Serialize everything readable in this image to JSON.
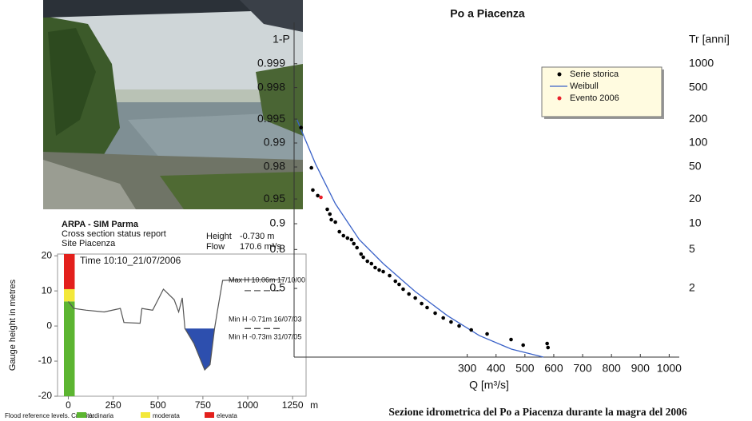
{
  "caption": "Sezione idrometrica del Po a Piacenza durante la magra del 2006",
  "chart_data": [
    {
      "type": "line",
      "title": "ARPA - SIM Parma",
      "subtitle": "Cross section status report",
      "site": "Site Piacenza",
      "time": "Time 10:10_21/07/2006",
      "height_label": "Height",
      "current_height": {
        "value": -0.73,
        "label": "-0.730 m"
      },
      "flow_label": "Flow",
      "flow": "170.6 m³/s",
      "y_label": "Gauge height in metres",
      "x_unit": "m",
      "xlim": [
        -60,
        1325
      ],
      "ylim": [
        -20,
        20.5
      ],
      "xticks": [
        0,
        250,
        500,
        750,
        1000,
        1250
      ],
      "yticks": [
        -20,
        -10,
        0,
        10,
        20
      ],
      "series": [
        {
          "color": "#555555",
          "water_color": "#2d4fae",
          "x": [
            0,
            30,
            100,
            200,
            290,
            310,
            400,
            410,
            470,
            530,
            590,
            615,
            635,
            650,
            700,
            760,
            790,
            815,
            830,
            860,
            960,
            1200
          ],
          "values": [
            7,
            5,
            4.5,
            4,
            5,
            1,
            0.8,
            5,
            4.5,
            10.5,
            7.5,
            4,
            8,
            -0.73,
            -5,
            -12.5,
            -11,
            -0.73,
            4,
            13,
            13.2,
            13.2
          ]
        }
      ],
      "reference_lines": [
        {
          "label": "Max H 10.06m 17/10/00",
          "value": 10.06
        },
        {
          "label": "Min H -0.71m 16/07/03",
          "value": -0.71
        },
        {
          "label": "Min H -0.73m 31/07/05",
          "value": -0.73
        }
      ],
      "flood_legend_title": "Flood reference levels. Criticità:",
      "flood_levels": [
        {
          "name": "ordinaria",
          "color": "#5cb531",
          "value": 7
        },
        {
          "name": "moderata",
          "color": "#f3e83a",
          "value": 10.5
        },
        {
          "name": "elevata",
          "color": "#e3201c",
          "value": 20.5
        }
      ]
    },
    {
      "type": "scatter",
      "title": "Po a Piacenza",
      "x_label": "Q [m³/s]",
      "y_label": "1-P",
      "y2_label": "Tr [anni]",
      "yscale": "gumbel",
      "y2scale": "return-period",
      "xlim": [
        -300,
        1035
      ],
      "ylim": [
        0.006,
        0.9997
      ],
      "y2lim": [
        1.006,
        3333
      ],
      "xticks": [
        300,
        400,
        500,
        600,
        700,
        800,
        900,
        1000
      ],
      "yticks": [
        0.5,
        0.8,
        0.9,
        0.95,
        0.98,
        0.99,
        0.995,
        0.998,
        0.999
      ],
      "y2ticks": [
        2,
        5,
        10,
        20,
        50,
        100,
        200,
        500,
        1000
      ],
      "legend": "upper right",
      "series": [
        {
          "name": "Serie storica",
          "color": "#000000",
          "marker": "dot",
          "x": [
            -276,
            -240,
            -235,
            -218,
            -185,
            -176,
            -171,
            -157,
            -143,
            -129,
            -115,
            -101,
            -93,
            -82,
            -68,
            -60,
            -46,
            -32,
            -19,
            -5,
            9,
            31,
            51,
            64,
            78,
            98,
            120,
            142,
            161,
            189,
            217,
            244,
            272,
            314,
            369,
            452,
            494,
            577,
            580
          ],
          "values": [
            0.9936,
            0.9795,
            0.9612,
            0.9545,
            0.933,
            0.9234,
            0.9105,
            0.9043,
            0.8755,
            0.8613,
            0.8521,
            0.8457,
            0.8283,
            0.8093,
            0.775,
            0.756,
            0.7304,
            0.714,
            0.685,
            0.6664,
            0.6536,
            0.6203,
            0.57,
            0.5396,
            0.4922,
            0.4424,
            0.4002,
            0.3402,
            0.2982,
            0.2405,
            0.1946,
            0.1588,
            0.1266,
            0.0982,
            0.0736,
            0.0465,
            0.027,
            0.0318,
            0.0208
          ]
        },
        {
          "name": "Weibull",
          "color": "#3a62c8",
          "marker": "line",
          "x": [
            -290,
            -226,
            -157,
            -74,
            9,
            120,
            231,
            342,
            453,
            564
          ],
          "values": [
            0.9949,
            0.9818,
            0.9428,
            0.8457,
            0.714,
            0.4676,
            0.217,
            0.065,
            0.0173,
            0.006
          ]
        },
        {
          "name": "Evento 2006",
          "color": "#e8202a",
          "marker": "dot",
          "x": [
            -207
          ],
          "values": [
            0.9523
          ]
        }
      ]
    }
  ]
}
